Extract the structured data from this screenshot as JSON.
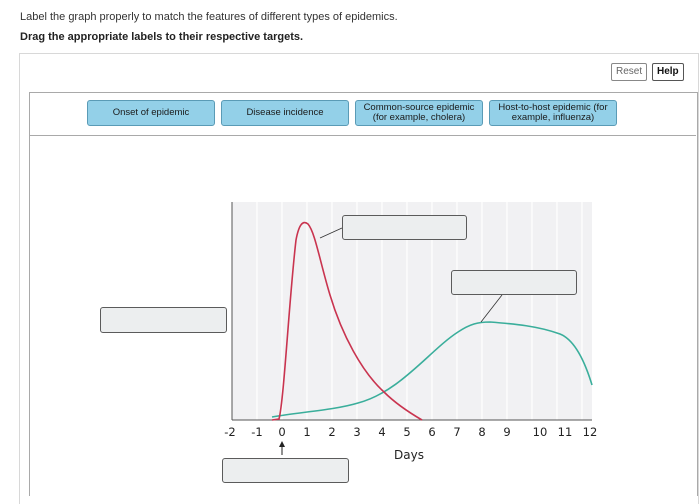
{
  "instructions": {
    "line1": "Label the graph properly to match the features of different types of epidemics.",
    "line2": "Drag the appropriate labels to their respective targets."
  },
  "toolbar": {
    "reset_label": "Reset",
    "help_label": "Help"
  },
  "labels": [
    {
      "text": "Onset of epidemic"
    },
    {
      "text": "Disease incidence"
    },
    {
      "text": "Common-source epidemic (for example, cholera)"
    },
    {
      "text": "Host-to-host epidemic (for example, influenza)"
    }
  ],
  "graph": {
    "x_ticks": [
      "-2",
      "-1",
      "0",
      "1",
      "2",
      "3",
      "4",
      "5",
      "6",
      "7",
      "8",
      "9",
      "10",
      "11",
      "12"
    ],
    "xlabel": "Days",
    "common_source_color": "#c9344f",
    "host_to_host_color": "#3aae9b"
  }
}
